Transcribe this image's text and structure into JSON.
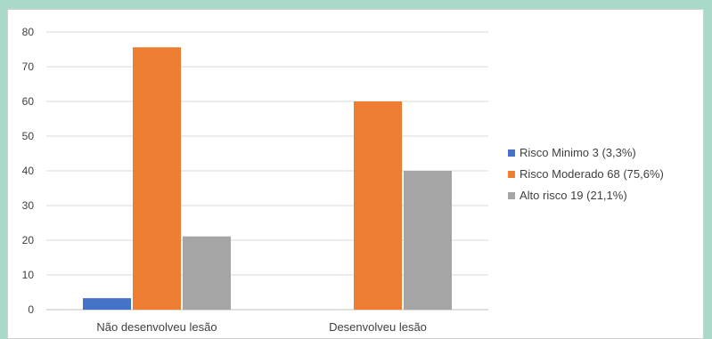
{
  "chart_data": {
    "type": "bar",
    "categories": [
      "Não desenvolveu lesão",
      "Desenvolveu lesão"
    ],
    "series": [
      {
        "name": "Risco Minimo 3 (3,3%)",
        "values": [
          3.3,
          0
        ],
        "color": "#4472c4"
      },
      {
        "name": "Risco Moderado 68 (75,6%)",
        "values": [
          75.6,
          60
        ],
        "color": "#ed7d31"
      },
      {
        "name": "Alto risco 19 (21,1%)",
        "values": [
          21.1,
          40
        ],
        "color": "#a5a5a5"
      }
    ],
    "title": "",
    "xlabel": "",
    "ylabel": "",
    "ylim": [
      0,
      80
    ],
    "yticks": [
      "0",
      "10",
      "20",
      "30",
      "40",
      "50",
      "60",
      "70",
      "80"
    ],
    "grid": true,
    "legend_position": "right"
  }
}
